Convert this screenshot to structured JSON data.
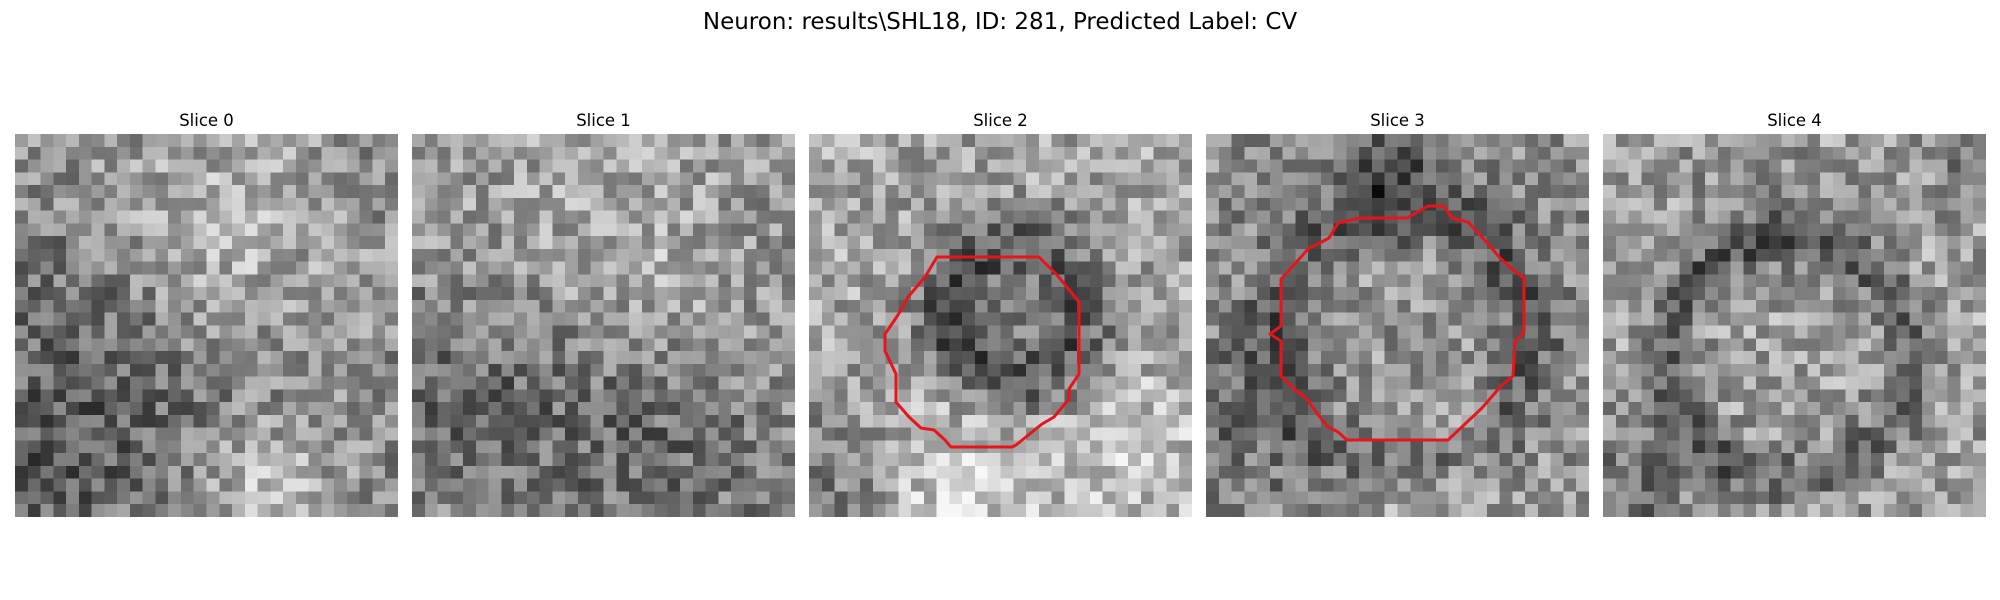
{
  "figure": {
    "title": "Neuron: results\\SHL18, ID: 281, Predicted Label: CV"
  },
  "colormap": "gray",
  "contour_color": "#e8141c",
  "panels": [
    {
      "title": "Slice 0",
      "has_contour": false
    },
    {
      "title": "Slice 1",
      "has_contour": false
    },
    {
      "title": "Slice 2",
      "has_contour": true
    },
    {
      "title": "Slice 3",
      "has_contour": true
    },
    {
      "title": "Slice 4",
      "has_contour": false
    }
  ]
}
